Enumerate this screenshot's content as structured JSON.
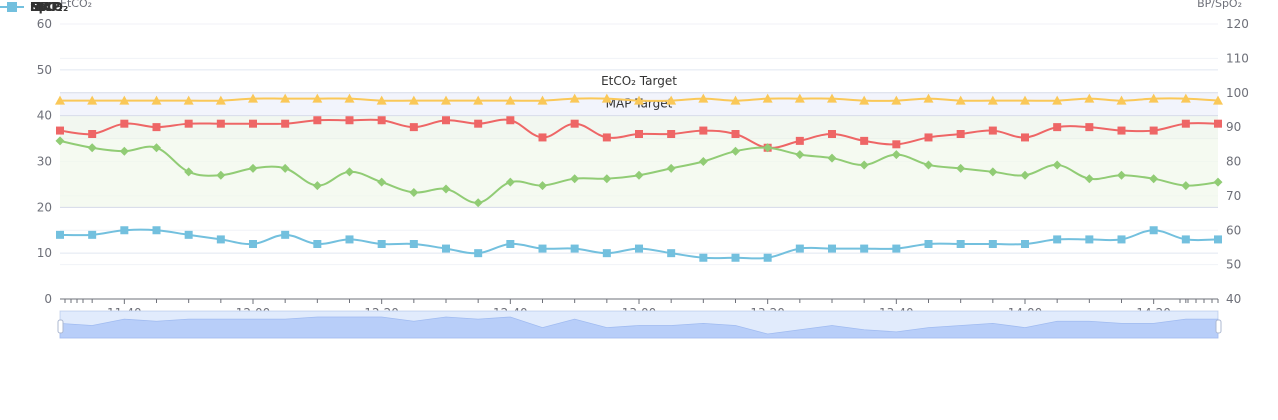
{
  "chart_data": {
    "type": "line",
    "x": [
      "11:30",
      "11:35",
      "11:40",
      "11:45",
      "11:50",
      "11:55",
      "12:00",
      "12:05",
      "12:10",
      "12:15",
      "12:20",
      "12:25",
      "12:30",
      "12:35",
      "12:40",
      "12:45",
      "12:50",
      "12:55",
      "13:00",
      "13:05",
      "13:10",
      "13:15",
      "13:20",
      "13:25",
      "13:30",
      "13:35",
      "13:40",
      "13:45",
      "13:50",
      "13:55",
      "14:00",
      "14:05",
      "14:10",
      "14:15",
      "14:20",
      "14:25",
      "14:30"
    ],
    "x_tick_labels": [
      "11:40",
      "12:00",
      "12:20",
      "12:40",
      "13:00",
      "13:20",
      "13:40",
      "14:00",
      "14:20"
    ],
    "legend_entries": [
      "MAP",
      "SpO₂",
      "HR",
      "EtCO₂"
    ],
    "series": [
      {
        "name": "MAP",
        "axis": "right",
        "color": "#ee6666",
        "marker": "square",
        "values": [
          89,
          88,
          91,
          90,
          91,
          91,
          91,
          91,
          92,
          92,
          92,
          90,
          92,
          91,
          92,
          87,
          91,
          87,
          88,
          88,
          89,
          88,
          84,
          86,
          88,
          86,
          85,
          87,
          88,
          89,
          87,
          90,
          90,
          89,
          89,
          91,
          91
        ]
      },
      {
        "name": "SpO₂",
        "axis": "right",
        "color": "#fac858",
        "marker": "triangle",
        "values": [
          97.7,
          97.7,
          97.7,
          97.7,
          97.7,
          97.7,
          98.3,
          98.3,
          98.3,
          98.3,
          97.7,
          97.7,
          97.7,
          97.7,
          97.7,
          97.7,
          98.3,
          98.3,
          97.7,
          97.7,
          98.3,
          97.7,
          98.3,
          98.3,
          98.3,
          97.7,
          97.7,
          98.3,
          97.7,
          97.7,
          97.7,
          97.7,
          98.3,
          97.7,
          98.3,
          98.3,
          97.7
        ]
      },
      {
        "name": "HR",
        "axis": "right",
        "color": "#91cc75",
        "marker": "diamond",
        "values": [
          86,
          84,
          83,
          84,
          77,
          76,
          78,
          78,
          73,
          77,
          74,
          71,
          72,
          68,
          74,
          73,
          75,
          75,
          76,
          78,
          80,
          83,
          84,
          82,
          81,
          79,
          82,
          79,
          78,
          77,
          76,
          79,
          75,
          76,
          75,
          73,
          74
        ]
      },
      {
        "name": "EtCO₂",
        "axis": "left",
        "color": "#73c0de",
        "marker": "square",
        "values": [
          14,
          14,
          15,
          15,
          14,
          13,
          12,
          14,
          12,
          13,
          12,
          12,
          11,
          10,
          12,
          11,
          11,
          10,
          11,
          10,
          9,
          9,
          9,
          11,
          11,
          11,
          11,
          12,
          12,
          12,
          12,
          13,
          13,
          13,
          15,
          13,
          13
        ]
      }
    ],
    "yaxis_left": {
      "name": "EtCO₂",
      "min": 0,
      "max": 60,
      "interval": 10
    },
    "yaxis_right": {
      "name": "BP/SpO₂",
      "min": 40,
      "max": 120,
      "interval": 10
    },
    "target_bands": [
      {
        "label": "EtCO₂ Target",
        "axis": "left",
        "from": 35,
        "to": 45,
        "color": "#eef0fb"
      },
      {
        "label": "MAP Target",
        "axis": "left",
        "from": 20,
        "to": 40,
        "color": "#f1f8ec"
      }
    ],
    "grid": true,
    "legend_position": "top-left",
    "datazoom": {
      "start": 0,
      "end": 100
    }
  }
}
